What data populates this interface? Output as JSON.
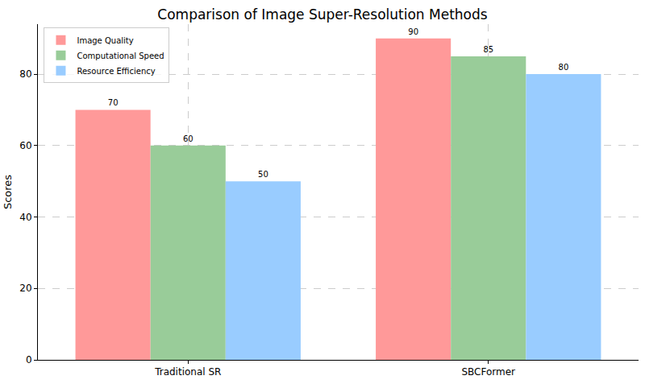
{
  "chart_data": {
    "type": "bar",
    "title": "Comparison of Image Super-Resolution Methods",
    "y_label": "Scores",
    "categories": [
      "Traditional SR",
      "SBCFormer"
    ],
    "series": [
      {
        "name": "Image Quality",
        "color": "#ff9999",
        "values": [
          70,
          90
        ]
      },
      {
        "name": "Computational Speed",
        "color": "#99cc99",
        "values": [
          60,
          85
        ]
      },
      {
        "name": "Resource Efficiency",
        "color": "#99ccff",
        "values": [
          50,
          80
        ]
      }
    ],
    "ylim": [
      0,
      94
    ],
    "yticks": [
      0,
      20,
      40,
      60,
      80
    ],
    "grid": true,
    "legend": "upper left",
    "data_labels": true
  }
}
